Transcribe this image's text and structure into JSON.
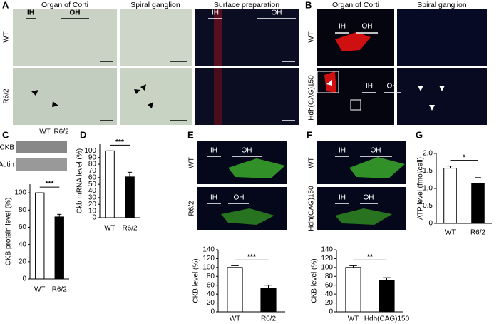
{
  "panels": {
    "A": {
      "letter": "A",
      "headers": [
        "Organ of Corti",
        "Spiral ganglion",
        "Surface preparation"
      ],
      "rows": [
        "WT",
        "R6/2"
      ],
      "image_labels": [
        "IH",
        "OH",
        "IH",
        "OH"
      ]
    },
    "B": {
      "letter": "B",
      "headers": [
        "Organ of Corti",
        "Spiral ganglion"
      ],
      "rows": [
        "WT",
        "Hdh(CAG)150"
      ],
      "image_labels": [
        "IH",
        "OH",
        "IH",
        "OH"
      ]
    },
    "C": {
      "letter": "C",
      "blot_columns": [
        "WT",
        "R6/2"
      ],
      "blot_rows": [
        "CKB",
        "Actin"
      ]
    },
    "D": {
      "letter": "D"
    },
    "E": {
      "letter": "E",
      "rows": [
        "WT",
        "R6/2"
      ],
      "image_labels": [
        "IH",
        "OH",
        "IH",
        "OH"
      ]
    },
    "F": {
      "letter": "F",
      "rows": [
        "WT",
        "Hdh(CAG)150"
      ],
      "image_labels": [
        "IH",
        "OH",
        "IH",
        "OH"
      ]
    },
    "G": {
      "letter": "G"
    }
  },
  "chart_data": [
    {
      "type": "bar",
      "ylabel": "CKB protein level (%)",
      "categories": [
        "WT",
        "R6/2"
      ],
      "values": [
        100,
        72
      ],
      "errors": [
        0,
        3
      ],
      "colors": [
        "#ffffff",
        "#000000"
      ],
      "ylim": [
        0,
        110
      ],
      "yticks": [
        0,
        20,
        40,
        60,
        80,
        100
      ],
      "significance": "***"
    },
    {
      "type": "bar",
      "ylabel": "Ckb mRNA level (%)",
      "categories": [
        "WT",
        "R6/2"
      ],
      "values": [
        100,
        61
      ],
      "errors": [
        0,
        7
      ],
      "colors": [
        "#ffffff",
        "#000000"
      ],
      "ylim": [
        0,
        110
      ],
      "yticks": [
        0,
        10,
        20,
        30,
        40,
        50,
        60,
        70,
        80,
        90,
        100
      ],
      "significance": "***"
    },
    {
      "type": "bar",
      "ylabel": "CKB level (%)",
      "categories": [
        "WT",
        "R6/2"
      ],
      "values": [
        100,
        53
      ],
      "errors": [
        4,
        7
      ],
      "colors": [
        "#ffffff",
        "#000000"
      ],
      "ylim": [
        0,
        140
      ],
      "yticks": [
        0,
        20,
        40,
        60,
        80,
        100,
        120,
        140
      ],
      "significance": "***"
    },
    {
      "type": "bar",
      "ylabel": "CKB level (%)",
      "categories": [
        "WT",
        "Hdh(CAG)150"
      ],
      "values": [
        100,
        70
      ],
      "errors": [
        4,
        7
      ],
      "colors": [
        "#ffffff",
        "#000000"
      ],
      "ylim": [
        0,
        140
      ],
      "yticks": [
        0,
        20,
        40,
        60,
        80,
        100,
        120,
        140
      ],
      "significance": "**"
    },
    {
      "type": "bar",
      "ylabel": "ATP level (fmol/cell)",
      "categories": [
        "WT",
        "R6/2"
      ],
      "values": [
        1.58,
        1.15
      ],
      "errors": [
        0.06,
        0.16
      ],
      "colors": [
        "#ffffff",
        "#000000"
      ],
      "ylim": [
        0,
        2
      ],
      "yticks": [
        0,
        0.5,
        {
          "value": 1,
          "label": "1.0"
        },
        1.5,
        {
          "value": 2,
          "label": "2.0"
        }
      ],
      "significance": "*"
    }
  ]
}
